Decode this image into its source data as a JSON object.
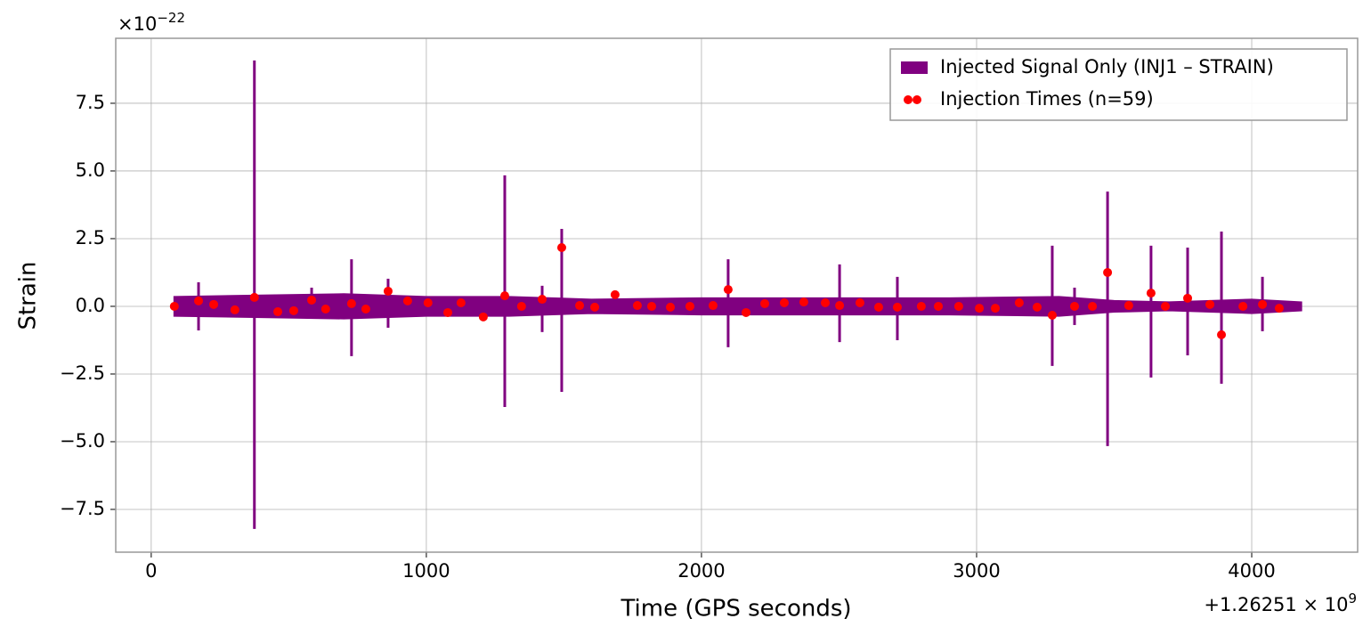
{
  "chart_data": {
    "type": "line",
    "x_label": "Time (GPS seconds)",
    "y_label": "Strain",
    "y_scale_label": {
      "base": "×10",
      "exponent": "−22"
    },
    "x_offset_label": {
      "base": "+1.26251 × 10",
      "exponent": "9"
    },
    "xlim": [
      -129,
      4385
    ],
    "ylim": [
      -9.08,
      9.9
    ],
    "xticks": [
      0,
      1000,
      2000,
      3000,
      4000
    ],
    "yticks": [
      {
        "value": -7.5,
        "label": "−7.5"
      },
      {
        "value": -5,
        "label": "−5.0"
      },
      {
        "value": -2.5,
        "label": "−2.5"
      },
      {
        "value": 0,
        "label": "0.0"
      },
      2.5,
      {
        "value": 5,
        "label": "5.0"
      },
      7.5
    ],
    "grid": true,
    "legend": "upper right",
    "series": [
      {
        "name": "Injected Signal Only (INJ1 – STRAIN)",
        "type": "area",
        "color": "#800080",
        "x": [
          84,
          400,
          700,
          1000,
          1300,
          1600,
          2000,
          2500,
          2900,
          3300,
          3500,
          3700,
          4000,
          4180
        ],
        "upper": [
          0.35,
          0.4,
          0.45,
          0.35,
          0.35,
          0.25,
          0.3,
          0.3,
          0.3,
          0.35,
          0.2,
          0.15,
          0.25,
          0.15
        ],
        "lower": [
          -0.35,
          -0.4,
          -0.45,
          -0.35,
          -0.35,
          -0.25,
          -0.3,
          -0.3,
          -0.3,
          -0.35,
          -0.2,
          -0.15,
          -0.25,
          -0.15
        ],
        "spike_x": [
          172,
          375,
          583,
          728,
          861,
          1285,
          1421,
          1492,
          2097,
          2502,
          2712,
          3275,
          3356,
          3476,
          3634,
          3767,
          3890,
          4039
        ],
        "spike_max": [
          0.89,
          9.08,
          0.69,
          1.74,
          1.02,
          4.84,
          0.76,
          2.86,
          1.74,
          1.55,
          1.09,
          2.24,
          0.69,
          4.24,
          2.24,
          2.17,
          2.76,
          1.09
        ],
        "spike_min": [
          -0.89,
          -8.22,
          -0.43,
          -1.84,
          -0.79,
          -3.72,
          -0.95,
          -3.16,
          -1.51,
          -1.32,
          -1.25,
          -2.2,
          -0.69,
          -5.16,
          -2.63,
          -1.81,
          -2.86,
          -0.92
        ]
      },
      {
        "name": "Injection Times (n=59)",
        "type": "scatter",
        "color": "#ff0000",
        "x": [
          84,
          172,
          227,
          304,
          375,
          460,
          518,
          583,
          634,
          728,
          780,
          861,
          932,
          1006,
          1078,
          1126,
          1207,
          1285,
          1346,
          1421,
          1492,
          1557,
          1612,
          1686,
          1767,
          1819,
          1887,
          1958,
          2042,
          2097,
          2162,
          2230,
          2301,
          2372,
          2450,
          2502,
          2576,
          2644,
          2712,
          2799,
          2861,
          2935,
          3010,
          3068,
          3155,
          3220,
          3275,
          3356,
          3421,
          3476,
          3553,
          3634,
          3686,
          3767,
          3848,
          3890,
          3968,
          4039,
          4100
        ],
        "values": [
          0,
          0.2,
          0.07,
          -0.13,
          0.33,
          -0.2,
          -0.16,
          0.23,
          -0.1,
          0.1,
          -0.1,
          0.56,
          0.2,
          0.13,
          -0.23,
          0.13,
          -0.39,
          0.39,
          0,
          0.26,
          2.17,
          0.03,
          -0.03,
          0.43,
          0.03,
          0,
          -0.03,
          0,
          0.03,
          0.62,
          -0.23,
          0.1,
          0.13,
          0.16,
          0.13,
          0.03,
          0.13,
          -0.03,
          -0.03,
          0,
          0,
          0,
          -0.07,
          -0.07,
          0.13,
          -0.03,
          -0.33,
          0,
          0,
          1.25,
          0.03,
          0.49,
          0,
          0.3,
          0.07,
          -1.05,
          0,
          0.07,
          -0.07
        ]
      }
    ]
  }
}
